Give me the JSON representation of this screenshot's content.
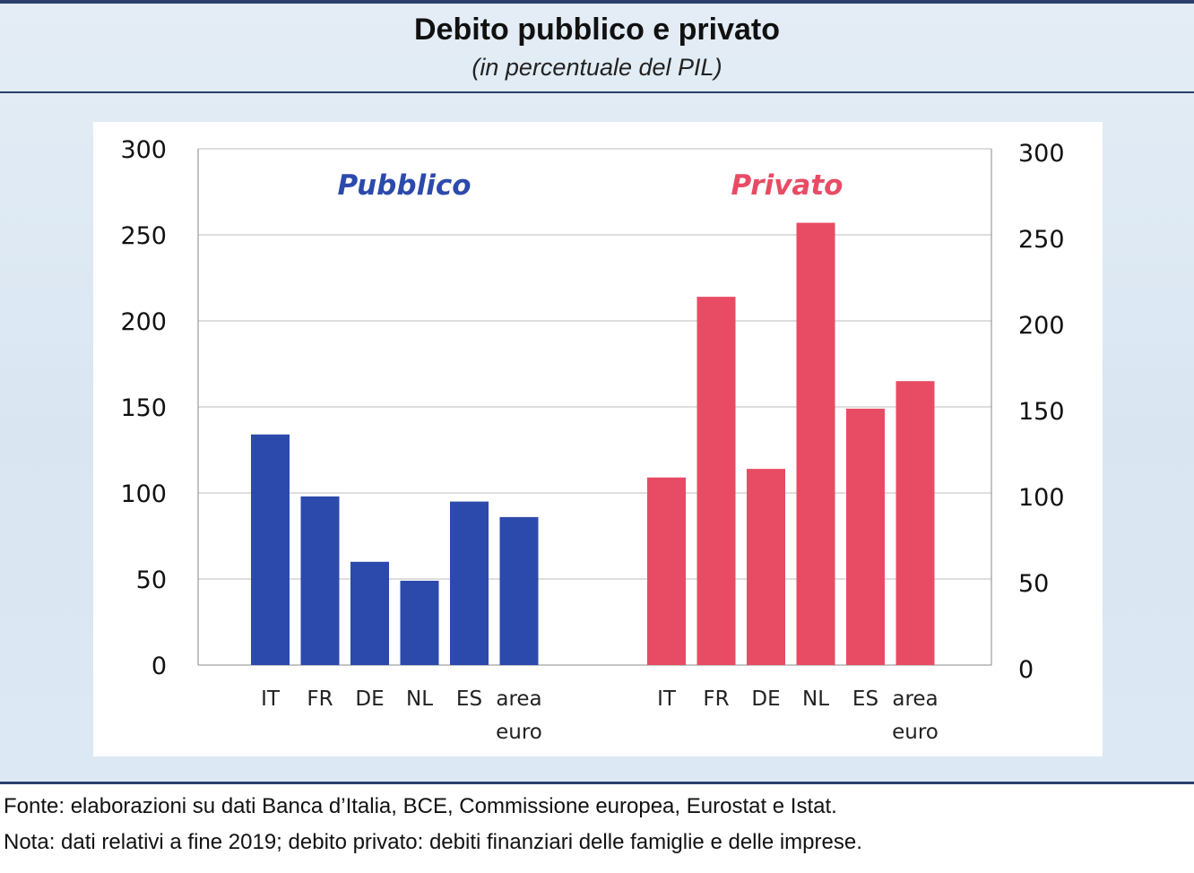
{
  "title": "Debito pubblico e privato",
  "subtitle": "(in percentuale del PIL)",
  "chart_data": {
    "type": "bar",
    "yticks": [
      "0",
      "50",
      "100",
      "150",
      "200",
      "250",
      "300"
    ],
    "ylim": [
      0,
      300
    ],
    "grid": true,
    "groups": [
      {
        "label": "Pubblico",
        "color": "#2c4aab",
        "categories": [
          [
            "IT"
          ],
          [
            "FR"
          ],
          [
            "DE"
          ],
          [
            "NL"
          ],
          [
            "ES"
          ],
          [
            "area",
            "euro"
          ]
        ],
        "values": [
          134,
          98,
          60,
          49,
          95,
          86
        ]
      },
      {
        "label": "Privato",
        "color": "#e84c65",
        "categories": [
          [
            "IT"
          ],
          [
            "FR"
          ],
          [
            "DE"
          ],
          [
            "NL"
          ],
          [
            "ES"
          ],
          [
            "area",
            "euro"
          ]
        ],
        "values": [
          109,
          214,
          114,
          257,
          149,
          165
        ]
      }
    ]
  },
  "footer": {
    "source": "Fonte: elaborazioni su dati Banca d’Italia, BCE, Commissione europea, Eurostat e Istat.",
    "note": "Nota: dati relativi a fine 2019; debito privato: debiti finanziari delle famiglie e delle imprese."
  }
}
